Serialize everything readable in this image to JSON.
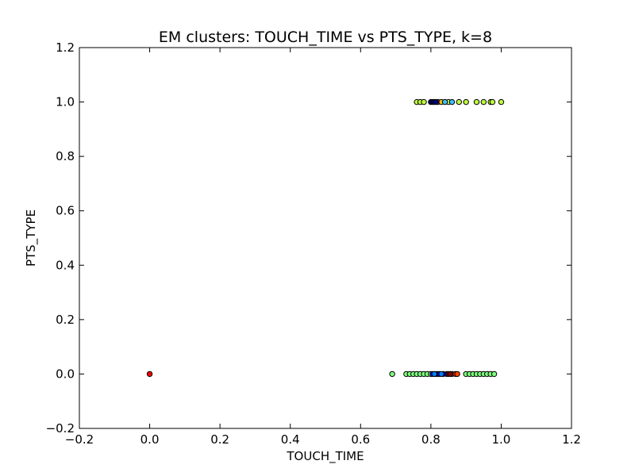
{
  "chart_data": {
    "type": "scatter",
    "title": "EM clusters: TOUCH_TIME vs PTS_TYPE, k=8",
    "xlabel": "TOUCH_TIME",
    "ylabel": "PTS_TYPE",
    "xlim": [
      -0.2,
      1.2
    ],
    "ylim": [
      -0.2,
      1.2
    ],
    "xticks": [
      -0.2,
      0.0,
      0.2,
      0.4,
      0.6,
      0.8,
      1.0,
      1.2
    ],
    "yticks": [
      -0.2,
      0.0,
      0.2,
      0.4,
      0.6,
      0.8,
      1.0,
      1.2
    ],
    "xtick_labels": [
      "−0.2",
      "0.0",
      "0.2",
      "0.4",
      "0.6",
      "0.8",
      "1.0",
      "1.2"
    ],
    "ytick_labels": [
      "−0.2",
      "0.0",
      "0.2",
      "0.4",
      "0.6",
      "0.8",
      "1.0",
      "1.2"
    ],
    "grid": false,
    "series": [
      {
        "color": "#ff0000",
        "points": [
          [
            0.0,
            0.0
          ]
        ]
      },
      {
        "color": "#7fff7f",
        "points": [
          [
            0.69,
            0
          ],
          [
            0.73,
            0
          ],
          [
            0.74,
            0
          ],
          [
            0.75,
            0
          ],
          [
            0.76,
            0
          ],
          [
            0.77,
            0
          ],
          [
            0.78,
            0
          ],
          [
            0.79,
            0
          ],
          [
            0.8,
            0
          ],
          [
            0.82,
            0
          ],
          [
            0.9,
            0
          ],
          [
            0.91,
            0
          ],
          [
            0.92,
            0
          ],
          [
            0.93,
            0
          ],
          [
            0.94,
            0
          ],
          [
            0.95,
            0
          ],
          [
            0.96,
            0
          ],
          [
            0.97,
            0
          ],
          [
            0.98,
            0
          ]
        ]
      },
      {
        "color": "#0000ff",
        "points": [
          [
            0.805,
            0
          ],
          [
            0.815,
            0
          ],
          [
            0.825,
            0
          ],
          [
            0.835,
            0
          ],
          [
            0.845,
            0
          ]
        ]
      },
      {
        "color": "#007fff",
        "points": [
          [
            0.81,
            0
          ],
          [
            0.83,
            0
          ]
        ]
      },
      {
        "color": "#ff3f00",
        "points": [
          [
            0.86,
            0
          ],
          [
            0.87,
            0
          ],
          [
            0.875,
            0
          ]
        ]
      },
      {
        "color": "#7f0000",
        "points": [
          [
            0.85,
            0
          ],
          [
            0.855,
            0
          ]
        ]
      },
      {
        "color": "#bfff3f",
        "points": [
          [
            0.76,
            1
          ],
          [
            0.77,
            1
          ],
          [
            0.78,
            1
          ],
          [
            0.85,
            1
          ],
          [
            0.88,
            1
          ],
          [
            0.9,
            1
          ],
          [
            0.93,
            1
          ],
          [
            0.95,
            1
          ],
          [
            0.97,
            1
          ],
          [
            0.975,
            1
          ],
          [
            1.0,
            1
          ]
        ]
      },
      {
        "color": "#ffbf00",
        "points": [
          [
            0.82,
            1
          ],
          [
            0.83,
            1
          ]
        ]
      },
      {
        "color": "#00007f",
        "points": [
          [
            0.8,
            1
          ],
          [
            0.805,
            1
          ],
          [
            0.81,
            1
          ],
          [
            0.815,
            1
          ]
        ]
      },
      {
        "color": "#3fbfff",
        "points": [
          [
            0.84,
            1
          ],
          [
            0.86,
            1
          ]
        ]
      }
    ]
  }
}
